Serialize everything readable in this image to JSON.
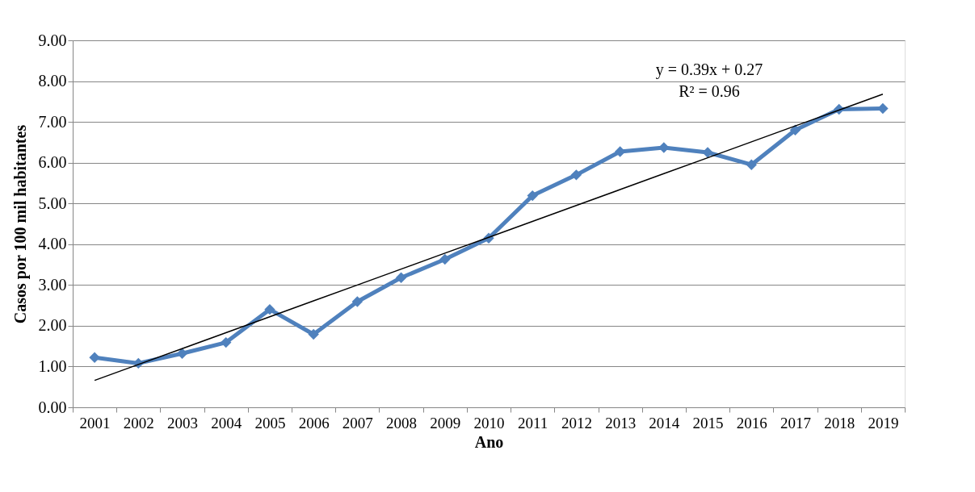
{
  "chart_data": {
    "type": "line",
    "xlabel": "Ano",
    "ylabel": "Casos por 100 mil habitantes",
    "categories": [
      "2001",
      "2002",
      "2003",
      "2004",
      "2005",
      "2006",
      "2007",
      "2008",
      "2009",
      "2010",
      "2011",
      "2012",
      "2013",
      "2014",
      "2015",
      "2016",
      "2017",
      "2018",
      "2019"
    ],
    "series": [
      {
        "color": "#4f81bd",
        "values": [
          1.22,
          1.08,
          1.32,
          1.59,
          2.4,
          1.79,
          2.59,
          3.18,
          3.63,
          4.15,
          5.19,
          5.7,
          6.27,
          6.37,
          6.25,
          5.95,
          6.8,
          7.31,
          7.33
        ],
        "marker": "diamond"
      },
      {
        "type": "line",
        "color": "#000000",
        "values": [
          0.66,
          1.05,
          1.44,
          1.83,
          2.22,
          2.61,
          3.0,
          3.39,
          3.78,
          4.17,
          4.56,
          4.95,
          5.34,
          5.73,
          6.12,
          6.51,
          6.9,
          7.29,
          7.68
        ],
        "marker": "none"
      }
    ],
    "ylim": [
      0,
      9
    ],
    "yticks": [
      {
        "value": 0,
        "label": "0.00"
      },
      {
        "value": 1,
        "label": "1.00"
      },
      {
        "value": 2,
        "label": "2.00"
      },
      {
        "value": 3,
        "label": "3.00"
      },
      {
        "value": 4,
        "label": "4.00"
      },
      {
        "value": 5,
        "label": "5.00"
      },
      {
        "value": 6,
        "label": "6.00"
      },
      {
        "value": 7,
        "label": "7.00"
      },
      {
        "value": 8,
        "label": "8.00"
      },
      {
        "value": 9,
        "label": "9.00"
      }
    ],
    "grid": "y",
    "annotations": [
      "y = 0.39x + 0.27",
      "R² = 0.96"
    ]
  }
}
